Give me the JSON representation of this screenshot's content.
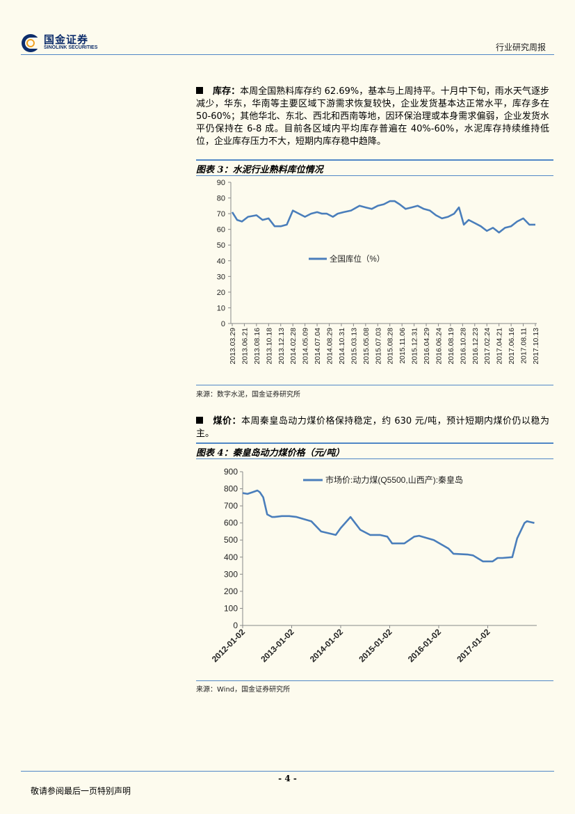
{
  "header": {
    "logo_cn": "国金证券",
    "logo_en": "SINOLINK SECURITIES",
    "report_type": "行业研究周报"
  },
  "section1": {
    "label": "库存：",
    "text": "本周全国熟料库存约 62.69%，基本与上周持平。十月中下旬，雨水天气逐步减少，华东，华南等主要区域下游需求恢复较快，企业发货基本达正常水平，库存多在 50-60%；其他华北、东北、西北和西南等地，因环保治理或本身需求偏弱，企业发货水平仍保持在 6-8 成。目前各区域内平均库存普遍在 40%-60%，水泥库存持续维持低位，企业库存压力不大，短期内库存稳中趋降。"
  },
  "figure3": {
    "title": "图表 3：水泥行业熟料库位情况",
    "source": "来源：数字水泥，国金证券研究所"
  },
  "section2": {
    "label": "煤价：",
    "text": "本周秦皇岛动力煤价格保持稳定，约 630 元/吨，预计短期内煤价仍以稳为主。"
  },
  "figure4": {
    "title": "图表 4：秦皇岛动力煤价格（元/吨）",
    "source": "来源：Wind，国金证券研究所"
  },
  "footer": {
    "page": "- 4 -",
    "note": "敬请参阅最后一页特别声明"
  },
  "colors": {
    "line": "#4a7ebb",
    "rule": "#4f86c6",
    "brand": "#0d2d6b"
  },
  "chart_data": [
    {
      "type": "line",
      "title": "",
      "ylim": [
        0,
        90
      ],
      "yticks": [
        0,
        10,
        20,
        30,
        40,
        50,
        60,
        70,
        80,
        90
      ],
      "categories": [
        "2013.03.29",
        "2013.06.21",
        "2013.08.16",
        "2013.10.18",
        "2013.12.13",
        "2014.02.28",
        "2014.05.09",
        "2014.07.04",
        "2014.08.29",
        "2014.10.31",
        "2015.03.13",
        "2015.05.08",
        "2015.07.03",
        "2015.08.28",
        "2015.11.06",
        "2015.12.31",
        "2016.04.29",
        "2016.06.24",
        "2016.08.19",
        "2016.10.28",
        "2016.12.23",
        "2017.02.24",
        "2017.04.21",
        "2017.06.16",
        "2017.08.11",
        "2017.10.13"
      ],
      "legend": [
        "全国库位（%）"
      ],
      "series": [
        {
          "name": "全国库位（%）",
          "x": [
            0,
            0.4,
            0.8,
            1.3,
            2,
            2.5,
            3,
            3.5,
            4,
            4.5,
            5,
            5.5,
            6,
            6.5,
            7,
            7.4,
            7.8,
            8.3,
            8.7,
            9.2,
            9.8,
            10.5,
            11,
            11.5,
            12,
            12.5,
            13,
            13.4,
            13.8,
            14.3,
            14.8,
            15.3,
            15.8,
            16.3,
            16.8,
            17.3,
            17.8,
            18.3,
            18.7,
            19.1,
            19.5,
            20,
            20.5,
            21,
            21.5,
            22,
            22.5,
            23,
            23.5,
            24,
            24.5,
            25
          ],
          "values": [
            71,
            66,
            65,
            68,
            69,
            66,
            67,
            62,
            62,
            63,
            72,
            70,
            68,
            70,
            71,
            70,
            70,
            68,
            70,
            71,
            72,
            75,
            74,
            73,
            75,
            76,
            78,
            78,
            76,
            73,
            74,
            75,
            73,
            72,
            69,
            67,
            68,
            70,
            74,
            63,
            66,
            64,
            62,
            59,
            61,
            58,
            61,
            62,
            65,
            67,
            63,
            63
          ]
        }
      ]
    },
    {
      "type": "line",
      "title": "",
      "ylim": [
        0,
        900
      ],
      "yticks": [
        0,
        100,
        200,
        300,
        400,
        500,
        600,
        700,
        800,
        900
      ],
      "categories": [
        "2012-01-02",
        "2013-01-02",
        "2014-01-02",
        "2015-01-02",
        "2016-01-02",
        "2017-01-02"
      ],
      "legend": [
        "市场价:动力煤(Q5500,山西产):秦皇岛"
      ],
      "series": [
        {
          "name": "市场价:动力煤(Q5500,山西产):秦皇岛",
          "x": [
            0,
            0.1,
            0.2,
            0.3,
            0.35,
            0.42,
            0.5,
            0.6,
            0.65,
            0.8,
            0.95,
            1.1,
            1.4,
            1.6,
            1.9,
            2.0,
            2.2,
            2.4,
            2.6,
            2.8,
            2.95,
            3.05,
            3.3,
            3.5,
            3.6,
            3.9,
            4.2,
            4.3,
            4.6,
            4.7,
            4.9,
            5.1,
            5.2,
            5.3,
            5.5,
            5.6,
            5.75,
            5.8,
            5.95
          ],
          "values": [
            775,
            770,
            780,
            790,
            780,
            750,
            650,
            635,
            635,
            640,
            640,
            635,
            610,
            550,
            530,
            570,
            635,
            560,
            530,
            530,
            520,
            480,
            480,
            520,
            525,
            500,
            450,
            420,
            415,
            410,
            375,
            375,
            395,
            395,
            400,
            510,
            600,
            610,
            600
          ]
        }
      ]
    }
  ]
}
